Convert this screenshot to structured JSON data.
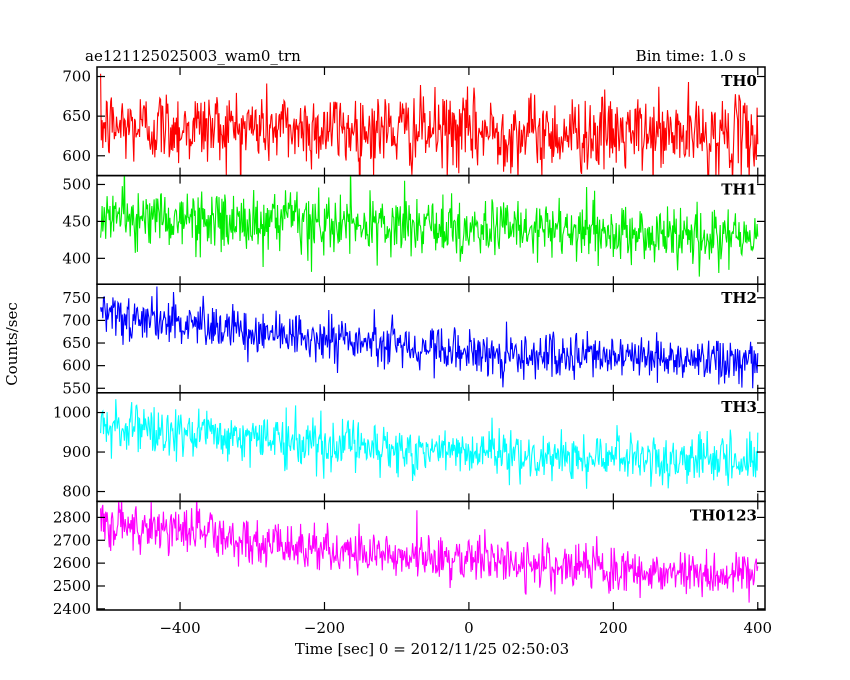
{
  "header": {
    "title": "ae121125025003_wam0_trn",
    "bin_time": "Bin time: 1.0 s"
  },
  "axes": {
    "xlabel": "Time [sec] 0 = 2012/11/25 02:50:03",
    "ylabel": "Counts/sec"
  },
  "chart_data": [
    {
      "type": "line",
      "name": "TH0",
      "color": "#ff0000",
      "xlim": [
        -515,
        410
      ],
      "ylim": [
        575,
        712
      ],
      "yticks": [
        600,
        650,
        700
      ],
      "xticks": [
        -400,
        -200,
        0,
        200,
        400
      ],
      "x_range": [
        -510,
        400
      ],
      "trend": [
        [
          -510,
          637
        ],
        [
          -300,
          636
        ],
        [
          0,
          630
        ],
        [
          200,
          627
        ],
        [
          400,
          625
        ]
      ],
      "noise_sd": 24
    },
    {
      "type": "line",
      "name": "TH1",
      "color": "#00ee00",
      "xlim": [
        -515,
        410
      ],
      "ylim": [
        365,
        512
      ],
      "yticks": [
        400,
        450,
        500
      ],
      "xticks": [
        -400,
        -200,
        0,
        200,
        400
      ],
      "x_range": [
        -510,
        400
      ],
      "trend": [
        [
          -510,
          458
        ],
        [
          -300,
          448
        ],
        [
          0,
          440
        ],
        [
          200,
          433
        ],
        [
          400,
          428
        ]
      ],
      "noise_sd": 20
    },
    {
      "type": "line",
      "name": "TH2",
      "color": "#0000ff",
      "xlim": [
        -515,
        410
      ],
      "ylim": [
        540,
        780
      ],
      "yticks": [
        550,
        600,
        650,
        700,
        750
      ],
      "xticks": [
        -400,
        -200,
        0,
        200,
        400
      ],
      "x_range": [
        -510,
        400
      ],
      "trend": [
        [
          -510,
          705
        ],
        [
          -400,
          698
        ],
        [
          -200,
          660
        ],
        [
          0,
          632
        ],
        [
          200,
          615
        ],
        [
          400,
          608
        ]
      ],
      "noise_sd": 25
    },
    {
      "type": "line",
      "name": "TH3",
      "color": "#00ffff",
      "xlim": [
        -515,
        410
      ],
      "ylim": [
        775,
        1050
      ],
      "yticks": [
        800,
        900,
        1000
      ],
      "xticks": [
        -400,
        -200,
        0,
        200,
        400
      ],
      "x_range": [
        -510,
        400
      ],
      "trend": [
        [
          -510,
          960
        ],
        [
          -400,
          950
        ],
        [
          -200,
          920
        ],
        [
          0,
          895
        ],
        [
          200,
          885
        ],
        [
          400,
          875
        ]
      ],
      "noise_sd": 32
    },
    {
      "type": "line",
      "name": "TH0123",
      "color": "#ff00ff",
      "xlim": [
        -515,
        410
      ],
      "ylim": [
        2395,
        2870
      ],
      "yticks": [
        2400,
        2500,
        2600,
        2700,
        2800
      ],
      "xticks": [
        -400,
        -200,
        0,
        200,
        400
      ],
      "x_range": [
        -510,
        400
      ],
      "trend": [
        [
          -510,
          2760
        ],
        [
          -400,
          2745
        ],
        [
          -300,
          2700
        ],
        [
          -200,
          2660
        ],
        [
          0,
          2615
        ],
        [
          200,
          2575
        ],
        [
          400,
          2535
        ]
      ],
      "noise_sd": 52
    }
  ]
}
